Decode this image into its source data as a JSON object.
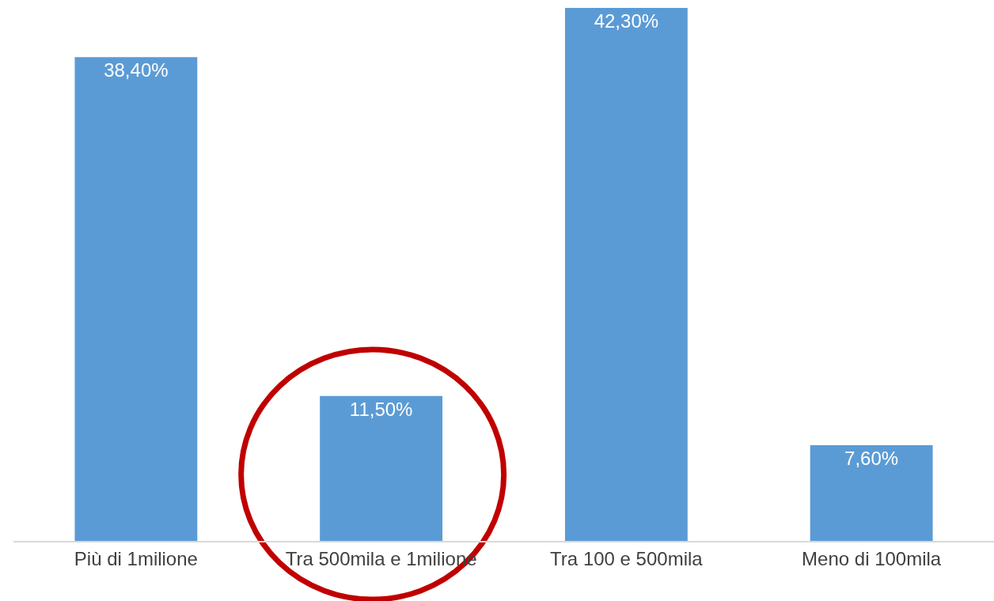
{
  "chart_data": {
    "type": "bar",
    "categories": [
      "Più di 1milione",
      "Tra 500mila e 1milione",
      "Tra 100 e 500mila",
      "Meno di 100mila"
    ],
    "values": [
      38.4,
      11.5,
      42.3,
      7.6
    ],
    "value_labels": [
      "38,40%",
      "11,50%",
      "42,30%",
      "7,60%"
    ],
    "color": "#5b9bd5",
    "ylim": [
      0,
      42.3
    ],
    "tick_labels": "x",
    "grid": false,
    "legend": false
  }
}
